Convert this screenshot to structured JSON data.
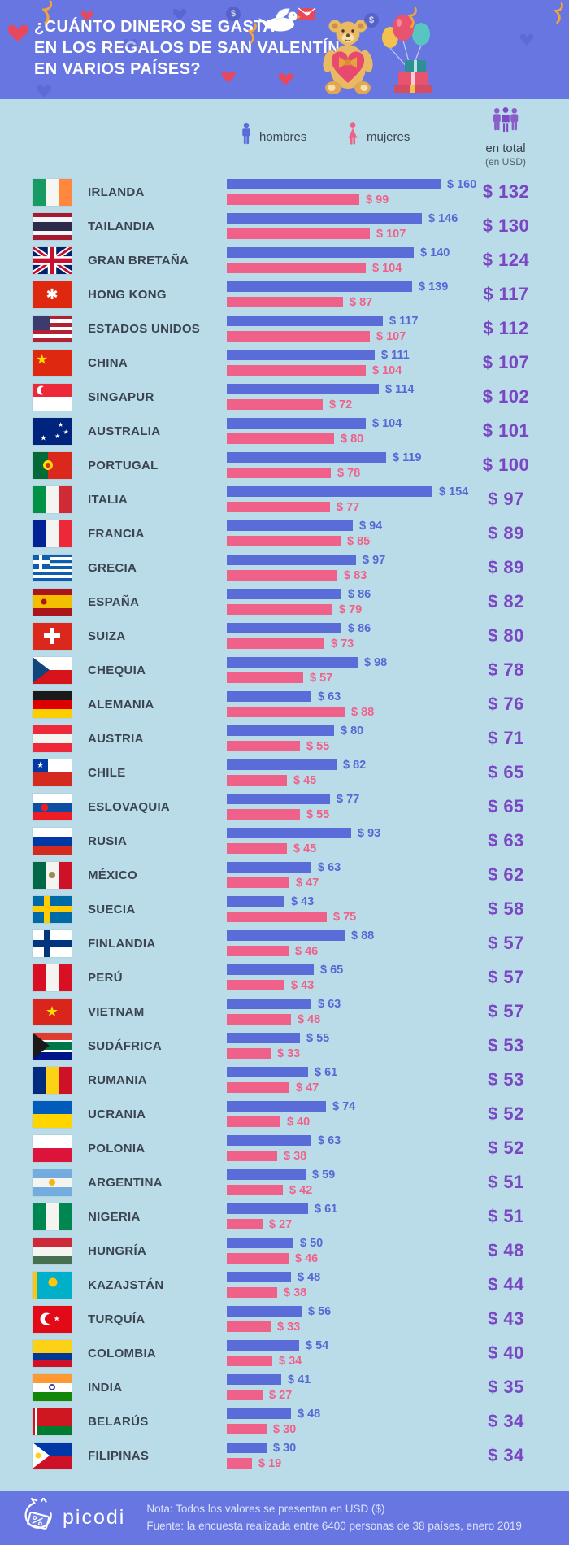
{
  "header": {
    "title_lines": [
      "¿CUÁNTO DINERO SE GASTA",
      "EN LOS REGALOS DE SAN VALENTÍN",
      "EN VARIOS PAÍSES?"
    ],
    "decoration_icons": [
      "heart-icon",
      "streamer-icon",
      "dove-with-letter-icon",
      "teddy-bear-heart-icon",
      "balloons-gifts-icon",
      "dollar-coin-icon"
    ]
  },
  "legend": {
    "men_label": "hombres",
    "women_label": "mujeres",
    "total_label": "en total",
    "total_sublabel": "(en USD)",
    "men_icon": "male-figure",
    "women_icon": "female-figure",
    "total_icon": "people-group"
  },
  "colors": {
    "header_bg": "#6876E2",
    "page_bg": "#B9DCE8",
    "men_bar": "#5A6CD8",
    "women_bar": "#F0618A",
    "total_text": "#7B46C4",
    "country_text": "#3B4450"
  },
  "chart_data": {
    "type": "bar",
    "orientation": "horizontal",
    "unit": "USD",
    "value_axis_max": 160,
    "series_names": [
      "hombres",
      "mujeres",
      "en total"
    ],
    "countries": [
      {
        "name": "IRLANDA",
        "men": 160,
        "women": 99,
        "total": 132,
        "flag": {
          "t": "v",
          "c": [
            "#169B62",
            "#F6F7F2",
            "#FF883E"
          ]
        }
      },
      {
        "name": "TAILANDIA",
        "men": 146,
        "women": 107,
        "total": 130,
        "flag": {
          "t": "h",
          "c": [
            "#A51931",
            "#F4F5F8",
            "#2D2A4A",
            "#F4F5F8",
            "#A51931"
          ],
          "w": [
            1,
            1,
            2,
            1,
            1
          ]
        }
      },
      {
        "name": "GRAN BRETAÑA",
        "men": 140,
        "women": 104,
        "total": 124,
        "flag": {
          "t": "uk"
        }
      },
      {
        "name": "HONG KONG",
        "men": 139,
        "women": 87,
        "total": 117,
        "flag": {
          "t": "solid",
          "c": "#DE2910",
          "o": [
            {
              "k": "glyph",
              "g": "✱",
              "c": "#FFFFFF",
              "x": "50%",
              "y": "50%",
              "s": 18
            }
          ]
        }
      },
      {
        "name": "ESTADOS UNIDOS",
        "men": 117,
        "women": 107,
        "total": 112,
        "flag": {
          "t": "h",
          "c": [
            "#B22234",
            "#FFFFFF",
            "#B22234",
            "#FFFFFF",
            "#B22234",
            "#FFFFFF",
            "#B22234"
          ],
          "o": [
            {
              "k": "canton",
              "c": "#3C3B6E"
            }
          ]
        }
      },
      {
        "name": "CHINA",
        "men": 111,
        "women": 104,
        "total": 107,
        "flag": {
          "t": "solid",
          "c": "#DE2910",
          "o": [
            {
              "k": "glyph",
              "g": "★",
              "c": "#FFDE00",
              "x": "24%",
              "y": "38%",
              "s": 17
            }
          ]
        }
      },
      {
        "name": "SINGAPUR",
        "men": 114,
        "women": 72,
        "total": 102,
        "flag": {
          "t": "h",
          "c": [
            "#ED2939",
            "#FFFFFF"
          ],
          "o": [
            {
              "k": "disc",
              "c": "#FFFFFF",
              "x": "22%",
              "y": "25%",
              "d": 11
            },
            {
              "k": "disc",
              "c": "#ED2939",
              "x": "31%",
              "y": "25%",
              "d": 10
            }
          ]
        }
      },
      {
        "name": "AUSTRALIA",
        "men": 104,
        "women": 80,
        "total": 101,
        "flag": {
          "t": "solid",
          "c": "#00247D",
          "o": [
            {
              "k": "ukcanton"
            },
            {
              "k": "glyph",
              "g": "★",
              "c": "#FFFFFF",
              "x": "72%",
              "y": "28%",
              "s": 8
            },
            {
              "k": "glyph",
              "g": "★",
              "c": "#FFFFFF",
              "x": "86%",
              "y": "55%",
              "s": 8
            },
            {
              "k": "glyph",
              "g": "★",
              "c": "#FFFFFF",
              "x": "64%",
              "y": "72%",
              "s": 8
            },
            {
              "k": "glyph",
              "g": "★",
              "c": "#FFFFFF",
              "x": "28%",
              "y": "76%",
              "s": 9
            }
          ]
        }
      },
      {
        "name": "PORTUGAL",
        "men": 119,
        "women": 78,
        "total": 100,
        "flag": {
          "t": "v",
          "c": [
            "#046A38",
            "#DA291C"
          ],
          "w": [
            2,
            3
          ],
          "o": [
            {
              "k": "disc",
              "c": "#FFE000",
              "x": "40%",
              "y": "50%",
              "d": 12
            },
            {
              "k": "disc",
              "c": "#DA291C",
              "x": "40%",
              "y": "50%",
              "d": 6
            }
          ]
        }
      },
      {
        "name": "ITALIA",
        "men": 154,
        "women": 77,
        "total": 97,
        "flag": {
          "t": "v",
          "c": [
            "#009246",
            "#F4F5F0",
            "#CE2B37"
          ]
        }
      },
      {
        "name": "FRANCIA",
        "men": 94,
        "women": 85,
        "total": 89,
        "flag": {
          "t": "v",
          "c": [
            "#002395",
            "#F4F5F0",
            "#ED2939"
          ]
        }
      },
      {
        "name": "GRECIA",
        "men": 97,
        "women": 83,
        "total": 89,
        "flag": {
          "t": "h",
          "c": [
            "#0D5EAF",
            "#FFFFFF",
            "#0D5EAF",
            "#FFFFFF",
            "#0D5EAF",
            "#FFFFFF",
            "#0D5EAF",
            "#FFFFFF",
            "#0D5EAF"
          ],
          "o": [
            {
              "k": "canton",
              "c": "#0D5EAF"
            },
            {
              "k": "cantoncross",
              "c": "#FFFFFF"
            }
          ]
        }
      },
      {
        "name": "ESPAÑA",
        "men": 86,
        "women": 79,
        "total": 82,
        "flag": {
          "t": "h",
          "c": [
            "#AA151B",
            "#F1BF00",
            "#AA151B"
          ],
          "w": [
            1,
            2,
            1
          ],
          "o": [
            {
              "k": "disc",
              "c": "#AD1519",
              "x": "30%",
              "y": "50%",
              "d": 7
            }
          ]
        }
      },
      {
        "name": "SUIZA",
        "men": 86,
        "women": 73,
        "total": 80,
        "flag": {
          "t": "solid",
          "c": "#DA291C",
          "o": [
            {
              "k": "plus",
              "c": "#FFFFFF"
            }
          ]
        }
      },
      {
        "name": "CHEQUIA",
        "men": 98,
        "women": 57,
        "total": 78,
        "flag": {
          "t": "h",
          "c": [
            "#FFFFFF",
            "#D7141A"
          ],
          "o": [
            {
              "k": "tri",
              "c": "#11457E"
            }
          ]
        }
      },
      {
        "name": "ALEMANIA",
        "men": 63,
        "women": 88,
        "total": 76,
        "flag": {
          "t": "h",
          "c": [
            "#1A1A1A",
            "#DD0000",
            "#FFCE00"
          ]
        }
      },
      {
        "name": "AUSTRIA",
        "men": 80,
        "women": 55,
        "total": 71,
        "flag": {
          "t": "h",
          "c": [
            "#ED2939",
            "#F4F5F0",
            "#ED2939"
          ]
        }
      },
      {
        "name": "CHILE",
        "men": 82,
        "women": 45,
        "total": 65,
        "flag": {
          "t": "h",
          "c": [
            "#FFFFFF",
            "#D52B1E"
          ],
          "o": [
            {
              "k": "canton",
              "c": "#0039A6",
              "cw": "40%",
              "ch": "50%"
            },
            {
              "k": "glyph",
              "g": "★",
              "c": "#FFFFFF",
              "x": "20%",
              "y": "25%",
              "s": 10
            }
          ]
        }
      },
      {
        "name": "ESLOVAQUIA",
        "men": 77,
        "women": 55,
        "total": 65,
        "flag": {
          "t": "h",
          "c": [
            "#FFFFFF",
            "#0B4EA2",
            "#EE1C25"
          ],
          "o": [
            {
              "k": "disc",
              "c": "#EE1C25",
              "x": "32%",
              "y": "52%",
              "d": 9
            }
          ]
        }
      },
      {
        "name": "RUSIA",
        "men": 93,
        "women": 45,
        "total": 63,
        "flag": {
          "t": "h",
          "c": [
            "#FFFFFF",
            "#0039A6",
            "#D52B1E"
          ]
        }
      },
      {
        "name": "MÉXICO",
        "men": 63,
        "women": 47,
        "total": 62,
        "flag": {
          "t": "v",
          "c": [
            "#006847",
            "#F4F5F0",
            "#CE1126"
          ],
          "o": [
            {
              "k": "disc",
              "c": "#9C8B4E",
              "x": "50%",
              "y": "50%",
              "d": 8
            }
          ]
        }
      },
      {
        "name": "SUECIA",
        "men": 43,
        "women": 75,
        "total": 58,
        "flag": {
          "t": "solid",
          "c": "#006AA7",
          "o": [
            {
              "k": "nordic",
              "c": "#FECC00"
            }
          ]
        }
      },
      {
        "name": "FINLANDIA",
        "men": 88,
        "women": 46,
        "total": 57,
        "flag": {
          "t": "solid",
          "c": "#FFFFFF",
          "o": [
            {
              "k": "nordic",
              "c": "#003580"
            }
          ]
        }
      },
      {
        "name": "PERÚ",
        "men": 65,
        "women": 43,
        "total": 57,
        "flag": {
          "t": "v",
          "c": [
            "#D91023",
            "#F4F5F0",
            "#D91023"
          ]
        }
      },
      {
        "name": "VIETNAM",
        "men": 63,
        "women": 48,
        "total": 57,
        "flag": {
          "t": "solid",
          "c": "#DA251D",
          "o": [
            {
              "k": "glyph",
              "g": "★",
              "c": "#FFDE00",
              "x": "50%",
              "y": "50%",
              "s": 18
            }
          ]
        }
      },
      {
        "name": "SUDÁFRICA",
        "men": 55,
        "women": 33,
        "total": 53,
        "flag": {
          "t": "h",
          "c": [
            "#E03C31",
            "#FFFFFF",
            "#007749",
            "#FFFFFF",
            "#001489"
          ],
          "w": [
            3,
            1,
            3,
            1,
            3
          ],
          "o": [
            {
              "k": "tri",
              "c": "#1A1A1A"
            }
          ]
        }
      },
      {
        "name": "RUMANIA",
        "men": 61,
        "women": 47,
        "total": 53,
        "flag": {
          "t": "v",
          "c": [
            "#002B7F",
            "#FCD116",
            "#CE1126"
          ]
        }
      },
      {
        "name": "UCRANIA",
        "men": 74,
        "women": 40,
        "total": 52,
        "flag": {
          "t": "h",
          "c": [
            "#005BBB",
            "#FFD500"
          ]
        }
      },
      {
        "name": "POLONIA",
        "men": 63,
        "women": 38,
        "total": 52,
        "flag": {
          "t": "h",
          "c": [
            "#FFFFFF",
            "#DC143C"
          ]
        }
      },
      {
        "name": "ARGENTINA",
        "men": 59,
        "women": 42,
        "total": 51,
        "flag": {
          "t": "h",
          "c": [
            "#74ACDF",
            "#F4F5F0",
            "#74ACDF"
          ],
          "o": [
            {
              "k": "disc",
              "c": "#F6B40E",
              "x": "50%",
              "y": "50%",
              "d": 8
            }
          ]
        }
      },
      {
        "name": "NIGERIA",
        "men": 61,
        "women": 27,
        "total": 51,
        "flag": {
          "t": "v",
          "c": [
            "#008751",
            "#F4F5F0",
            "#008751"
          ]
        }
      },
      {
        "name": "HUNGRÍA",
        "men": 50,
        "women": 46,
        "total": 48,
        "flag": {
          "t": "h",
          "c": [
            "#CE2939",
            "#F4F5F0",
            "#477050"
          ]
        }
      },
      {
        "name": "KAZAJSTÁN",
        "men": 48,
        "women": 38,
        "total": 44,
        "flag": {
          "t": "solid",
          "c": "#00AFCA",
          "o": [
            {
              "k": "bar",
              "c": "#FEC50C"
            },
            {
              "k": "disc",
              "c": "#FEC50C",
              "x": "52%",
              "y": "42%",
              "d": 11
            }
          ]
        }
      },
      {
        "name": "TURQUÍA",
        "men": 56,
        "women": 33,
        "total": 43,
        "flag": {
          "t": "solid",
          "c": "#E30A17",
          "o": [
            {
              "k": "disc",
              "c": "#FFFFFF",
              "x": "35%",
              "y": "50%",
              "d": 15
            },
            {
              "k": "disc",
              "c": "#E30A17",
              "x": "43%",
              "y": "50%",
              "d": 12
            },
            {
              "k": "glyph",
              "g": "★",
              "c": "#FFFFFF",
              "x": "62%",
              "y": "50%",
              "s": 9
            }
          ]
        }
      },
      {
        "name": "COLOMBIA",
        "men": 54,
        "women": 34,
        "total": 40,
        "flag": {
          "t": "h",
          "c": [
            "#FCD116",
            "#003893",
            "#CE1126"
          ],
          "w": [
            2,
            1,
            1
          ]
        }
      },
      {
        "name": "INDIA",
        "men": 41,
        "women": 27,
        "total": 35,
        "flag": {
          "t": "h",
          "c": [
            "#FF9933",
            "#FFFFFF",
            "#138808"
          ],
          "o": [
            {
              "k": "disc",
              "c": "#3344AA",
              "x": "50%",
              "y": "50%",
              "d": 8
            },
            {
              "k": "disc",
              "c": "#FFFFFF",
              "x": "50%",
              "y": "50%",
              "d": 4
            }
          ]
        }
      },
      {
        "name": "BELARÚS",
        "men": 48,
        "women": 30,
        "total": 34,
        "flag": {
          "t": "h",
          "c": [
            "#CE1720",
            "#007C30"
          ],
          "w": [
            2,
            1
          ],
          "o": [
            {
              "k": "bar",
              "c": "#FFFFFF"
            },
            {
              "k": "bar2",
              "c": "#CE1720"
            }
          ]
        }
      },
      {
        "name": "FILIPINAS",
        "men": 30,
        "women": 19,
        "total": 34,
        "flag": {
          "t": "h",
          "c": [
            "#0038A8",
            "#CE1126"
          ],
          "o": [
            {
              "k": "tri",
              "c": "#FFFFFF"
            },
            {
              "k": "disc",
              "c": "#FCD116",
              "x": "14%",
              "y": "50%",
              "d": 7
            }
          ]
        }
      }
    ]
  },
  "footer": {
    "brand": "picodi",
    "note": "Nota: Todos los valores se presentan en USD ($)",
    "source": "Fuente: la encuesta realizada entre 6400 personas de 38 países, enero 2019"
  }
}
